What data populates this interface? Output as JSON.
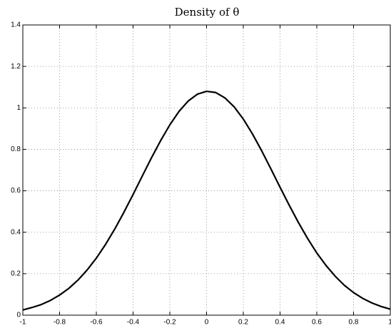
{
  "chart_data": {
    "type": "line",
    "title": "Density of θ",
    "x": [
      -1,
      -0.95,
      -0.9,
      -0.85,
      -0.8,
      -0.75,
      -0.7,
      -0.65,
      -0.6,
      -0.55,
      -0.5,
      -0.45,
      -0.4,
      -0.35,
      -0.3,
      -0.25,
      -0.2,
      -0.15,
      -0.1,
      -0.05,
      0,
      0.05,
      0.1,
      0.15,
      0.2,
      0.25,
      0.3,
      0.35,
      0.4,
      0.45,
      0.5,
      0.55,
      0.6,
      0.65,
      0.7,
      0.75,
      0.8,
      0.85,
      0.9,
      0.95,
      1
    ],
    "series": [
      {
        "color": "#000000",
        "values": [
          0.025,
          0.037,
          0.051,
          0.071,
          0.097,
          0.129,
          0.169,
          0.218,
          0.275,
          0.341,
          0.415,
          0.496,
          0.582,
          0.671,
          0.759,
          0.842,
          0.918,
          0.983,
          1.033,
          1.066,
          1.08,
          1.074,
          1.048,
          1.005,
          0.946,
          0.874,
          0.793,
          0.706,
          0.617,
          0.53,
          0.447,
          0.37,
          0.3,
          0.24,
          0.188,
          0.144,
          0.109,
          0.081,
          0.059,
          0.042,
          0.029
        ]
      }
    ],
    "xlim": [
      -1,
      1
    ],
    "xticks": [
      -1,
      -0.8,
      -0.6,
      -0.4,
      -0.2,
      0,
      0.2,
      0.4,
      0.6,
      0.8,
      1
    ],
    "ylim": [
      0,
      1.4
    ],
    "yticks": [
      0,
      0.2,
      0.4,
      0.6,
      0.8,
      1,
      1.2,
      1.4
    ],
    "grid": true
  }
}
